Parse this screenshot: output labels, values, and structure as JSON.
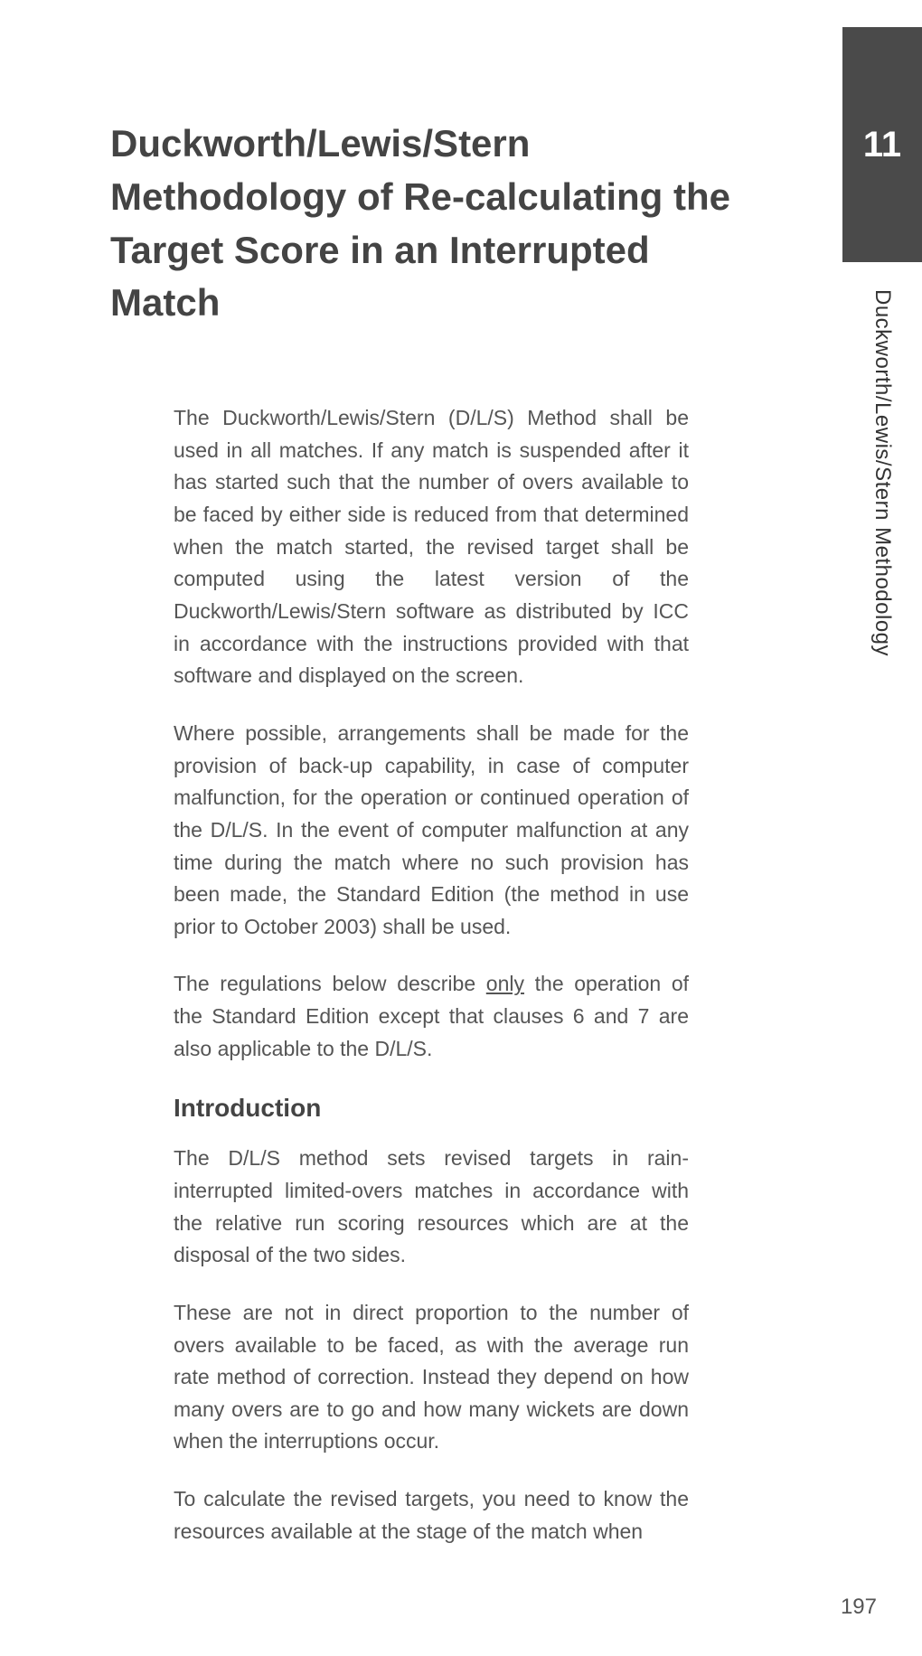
{
  "colors": {
    "background": "#ffffff",
    "tab_bg": "#4a4a4a",
    "tab_text": "#ffffff",
    "title_text": "#444444",
    "body_text": "#555555"
  },
  "typography": {
    "title_fontsize": 42,
    "body_fontsize": 23,
    "heading_fontsize": 28,
    "tab_number_fontsize": 40,
    "side_label_fontsize": 24,
    "page_number_fontsize": 24
  },
  "tab": {
    "number": "11"
  },
  "side_label": "Duckworth/Lewis/Stern Methodology",
  "title": "Duckworth/Lewis/Stern Methodology of Re-calculating the Target Score in an Interrupted Match",
  "paragraphs": {
    "p1": "The Duckworth/Lewis/Stern (D/L/S) Method shall be used in all matches. If any match is suspended after it has started such that the number of overs available to be faced by either side is reduced from that determined when the match started, the revised target shall be computed using the latest version of the Duckworth/Lewis/Stern software as distributed by ICC in accordance with the instructions provided with that software and displayed on the screen.",
    "p2": "Where possible, arrangements shall be made for the provision of back-up capability, in case of computer malfunction, for the operation or continued operation of the D/L/S. In the event of computer malfunction at any time during the match where no such provision has been made, the Standard Edition (the method in use prior to October 2003) shall be used.",
    "p3_pre": "The regulations below describe ",
    "p3_underlined": "only",
    "p3_post": " the operation of the Standard Edition except that clauses 6 and 7 are also applicable to the D/L/S.",
    "intro_heading": "Introduction",
    "p4": "The D/L/S method sets revised targets in rain-interrupted limited-overs matches in accordance with the relative run scoring resources which are at the disposal of the two sides.",
    "p5": "These are not in direct proportion to the number of overs available to be faced, as with the average run rate method of correction. Instead they depend on how many overs are to go and how many wickets are down when the interruptions occur.",
    "p6": "To calculate the revised targets, you need to know the resources available at the stage of the match when"
  },
  "page_number": "197"
}
